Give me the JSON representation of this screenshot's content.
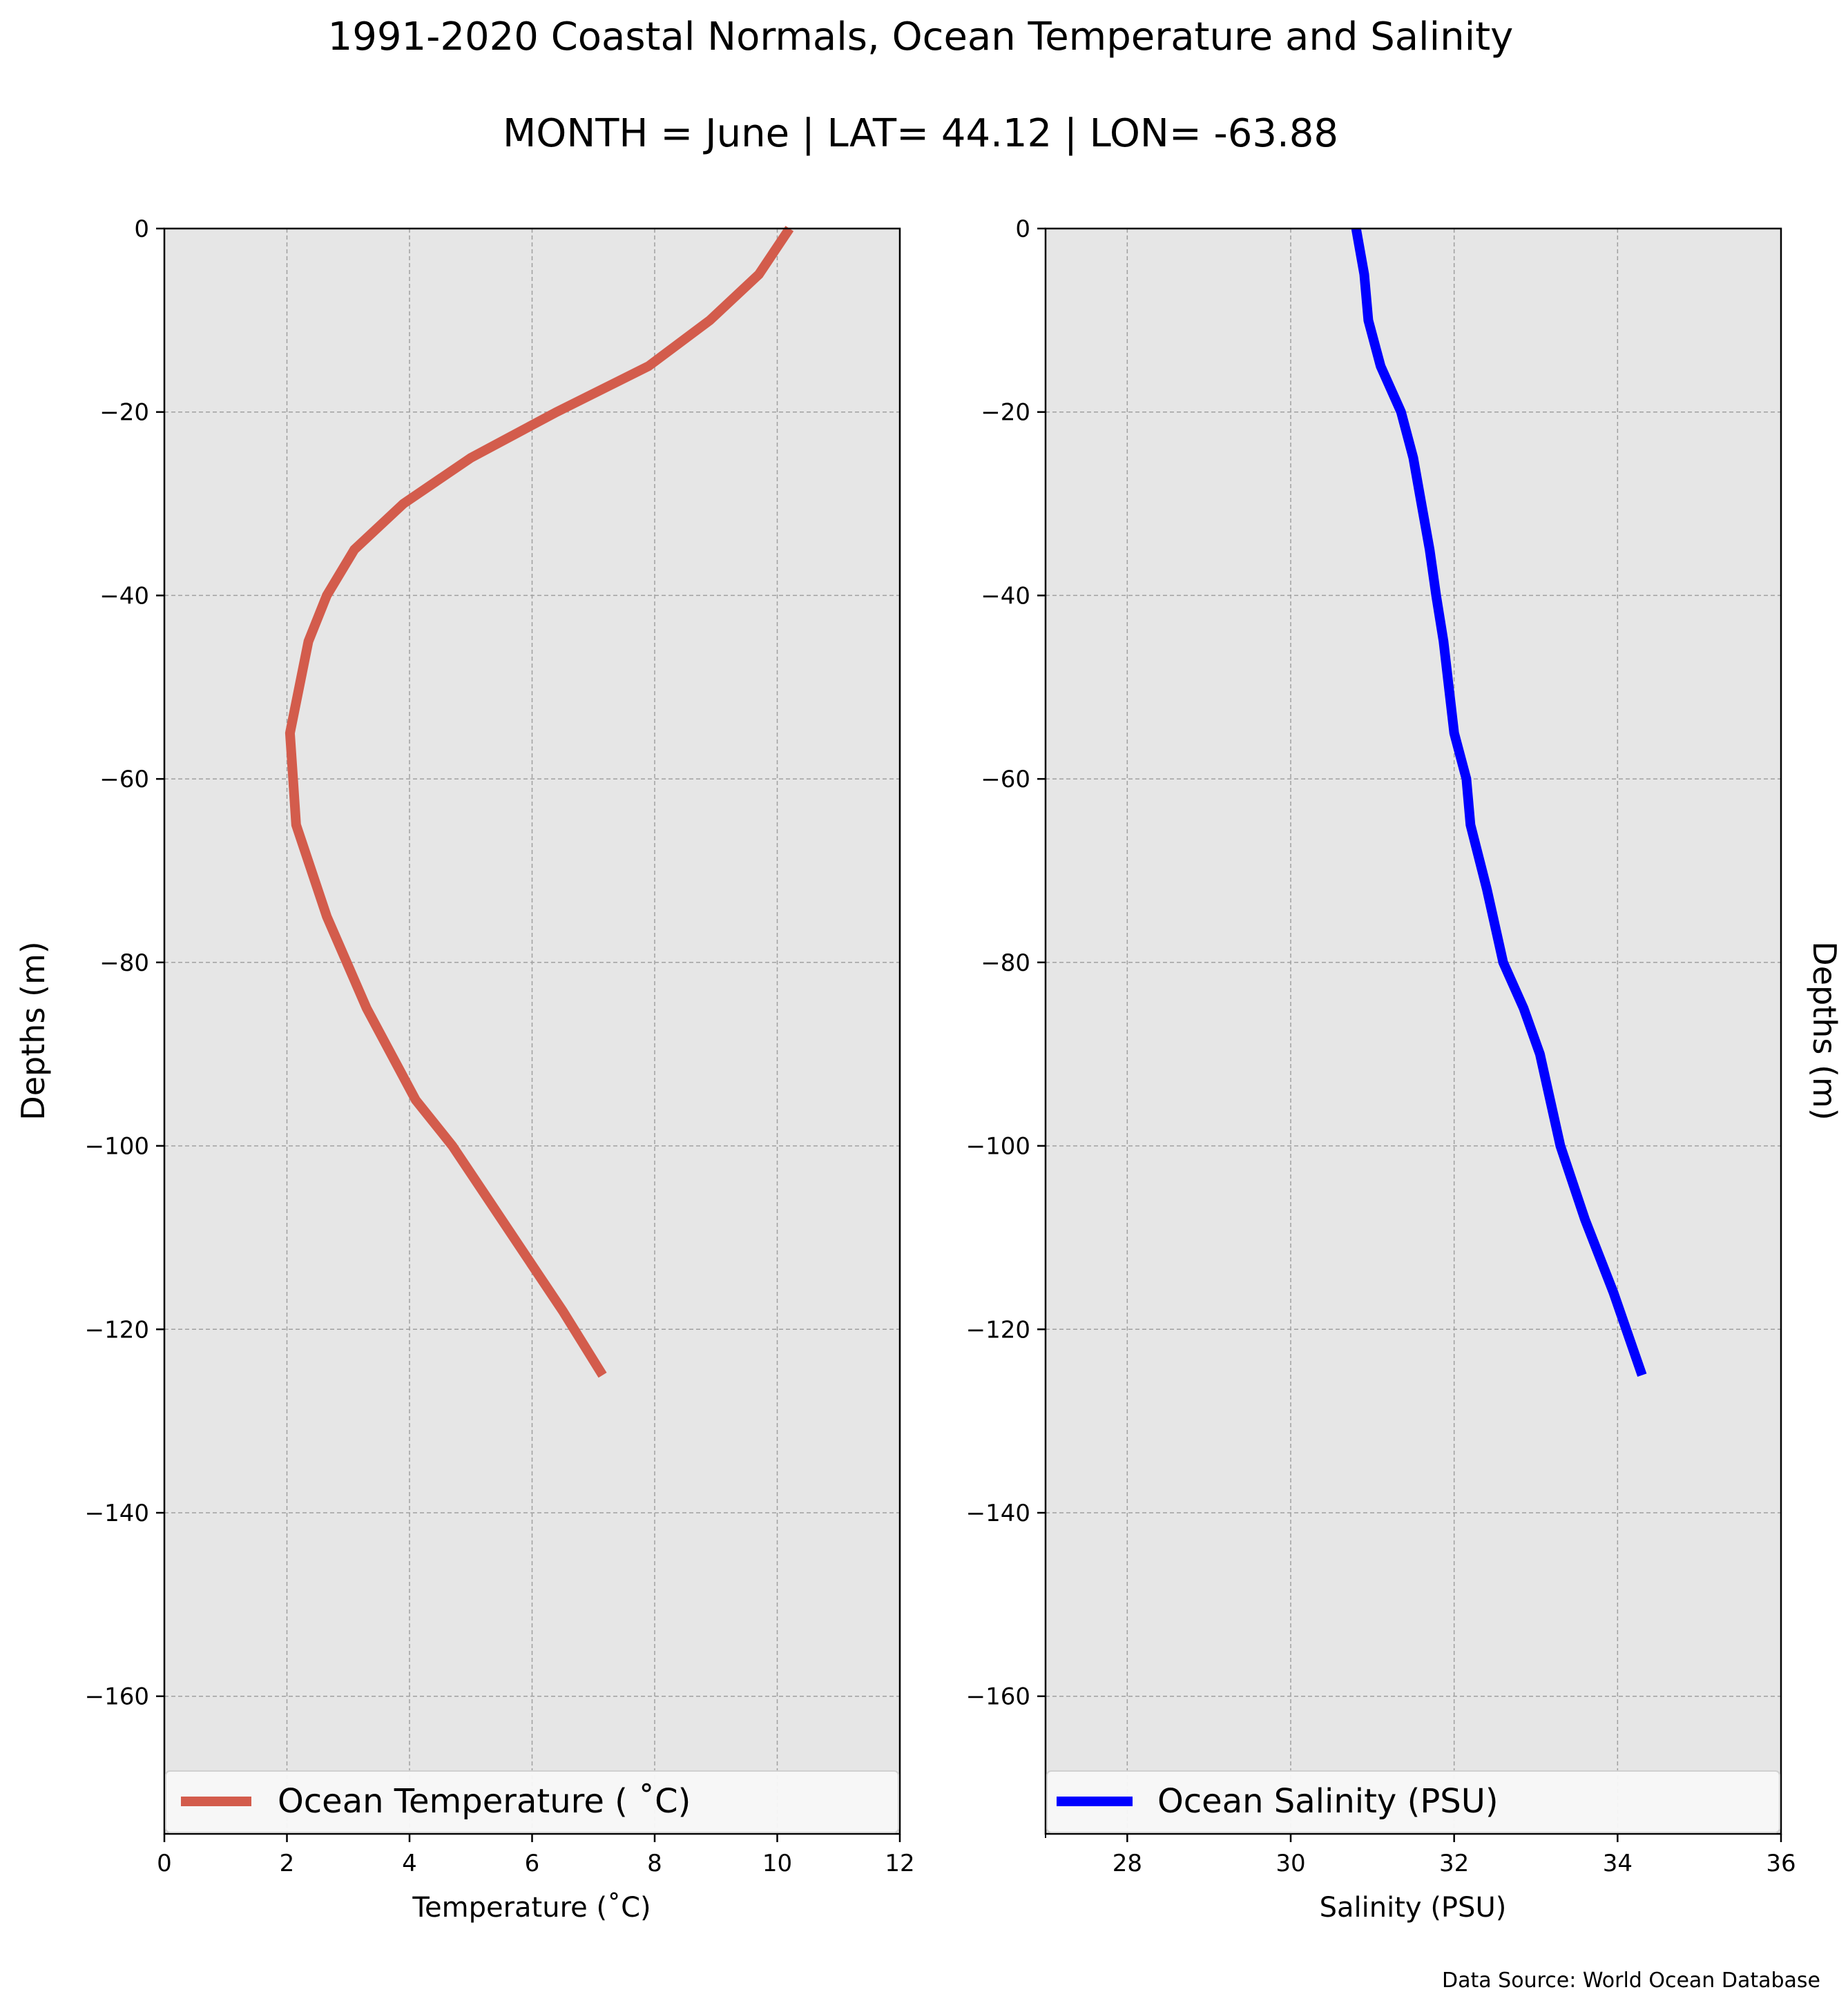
{
  "title": "1991-2020 Coastal Normals, Ocean Temperature and Salinity",
  "subtitle": "MONTH = June | LAT= 44.12 | LON= -63.88",
  "source": "Data Source: World Ocean Database",
  "colors": {
    "temperature": "#d35c4c",
    "salinity": "#0000ff",
    "plot_bg": "#e6e6e6",
    "grid": "#a0a0a0"
  },
  "chart_data": [
    {
      "type": "line",
      "xlabel": "Temperature ($^\\circ$C)",
      "xlabel_display": "Temperature (˚C)",
      "ylabel": "Depths (m)",
      "xlim": [
        0,
        12
      ],
      "ylim": [
        -175,
        0
      ],
      "xticks": [
        0,
        2,
        4,
        6,
        8,
        10,
        12
      ],
      "yticks": [
        0,
        -20,
        -40,
        -60,
        -80,
        -100,
        -120,
        -140,
        -160
      ],
      "ytick_labels": [
        "0",
        "−20",
        "−40",
        "−60",
        "−80",
        "−100",
        "−120",
        "−140",
        "−160"
      ],
      "grid": true,
      "legend": "bottom",
      "series": [
        {
          "name": "Ocean Temperature ( ˚C)",
          "color": "#d35c4c",
          "x": [
            10.2,
            9.7,
            8.9,
            7.9,
            6.4,
            5.0,
            3.9,
            3.1,
            2.65,
            2.35,
            2.05,
            2.1,
            2.15,
            2.65,
            3.3,
            4.1,
            4.7,
            5.3,
            5.9,
            6.5,
            7.15
          ],
          "y": [
            0,
            -5,
            -10,
            -15,
            -20,
            -25,
            -30,
            -35,
            -40,
            -45,
            -55,
            -60,
            -65,
            -75,
            -85,
            -95,
            -100,
            -106,
            -112,
            -118,
            -125
          ]
        }
      ]
    },
    {
      "type": "line",
      "xlabel": "Salinity (PSU)",
      "ylabel": "Depths (m)",
      "xlim": [
        27,
        36
      ],
      "ylim": [
        -175,
        0
      ],
      "xticks": [
        28,
        30,
        32,
        34,
        36
      ],
      "yticks": [
        0,
        -20,
        -40,
        -60,
        -80,
        -100,
        -120,
        -140,
        -160
      ],
      "ytick_labels": [
        "0",
        "−20",
        "−40",
        "−60",
        "−80",
        "−100",
        "−120",
        "−140",
        "−160"
      ],
      "grid": true,
      "legend": "bottom",
      "series": [
        {
          "name": "Ocean Salinity (PSU)",
          "color": "#0000ff",
          "x": [
            30.8,
            30.9,
            30.95,
            31.1,
            31.35,
            31.5,
            31.6,
            31.7,
            31.78,
            31.87,
            32.0,
            32.15,
            32.2,
            32.4,
            32.6,
            32.85,
            33.05,
            33.3,
            33.6,
            33.95,
            34.3
          ],
          "y": [
            0,
            -5,
            -10,
            -15,
            -20,
            -25,
            -30,
            -35,
            -40,
            -45,
            -55,
            -60,
            -65,
            -72,
            -80,
            -85,
            -90,
            -100,
            -108,
            -116,
            -125
          ]
        }
      ]
    }
  ]
}
